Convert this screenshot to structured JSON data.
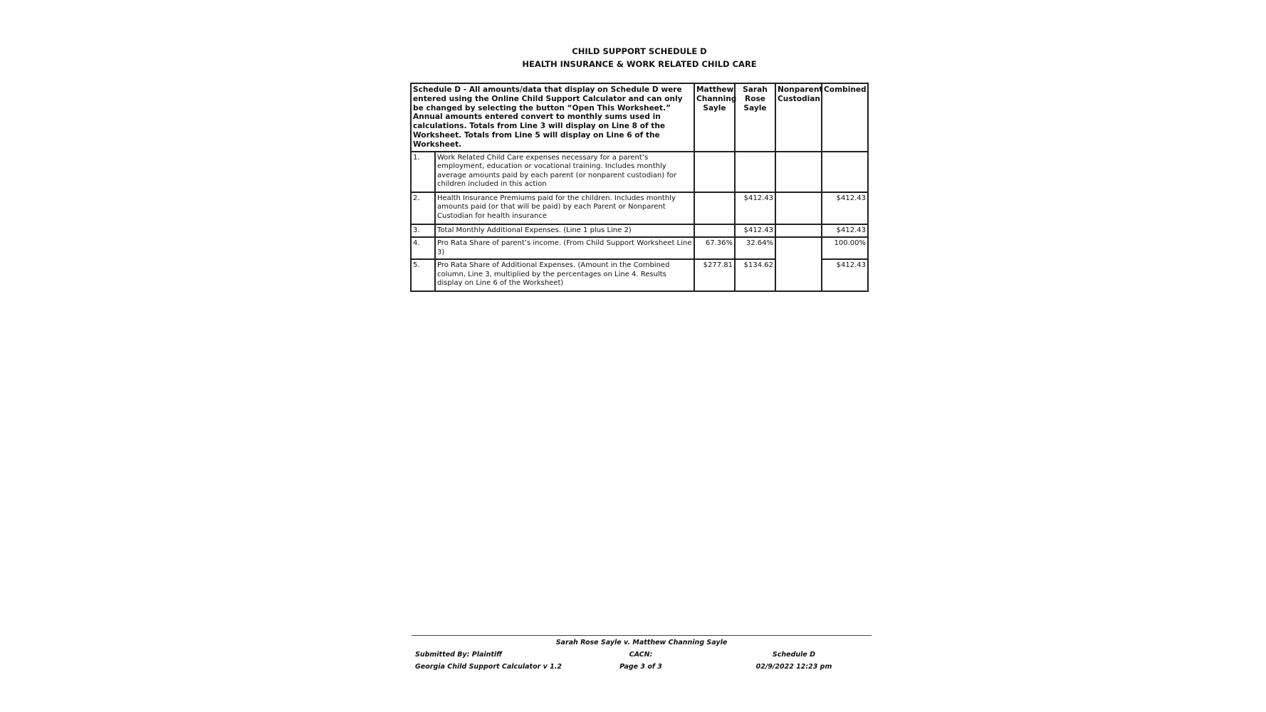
{
  "title": {
    "line1": "CHILD SUPPORT SCHEDULE D",
    "line2": "HEALTH INSURANCE & WORK RELATED CHILD CARE"
  },
  "header": {
    "description": "Schedule D - All amounts/data that display on Schedule D were entered using the Online Child Support Calculator and can only be changed by selecting the button “Open This Worksheet.” Annual amounts entered convert to monthly sums used in calculations. Totals from Line 3 will display on Line 8 of the Worksheet. Totals from Line 5 will display on Line 6 of the Worksheet.",
    "columns": [
      "Matthew Channing Sayle",
      "Sarah Rose Sayle",
      "Nonparent Custodian",
      "Combined"
    ]
  },
  "rows": [
    {
      "num": "1.",
      "label": "Work Related Child Care expenses necessary for a parent’s employment, education or vocational training. Includes monthly average amounts paid by each parent (or nonparent custodian) for children included in this action",
      "matthew": "",
      "sarah": "",
      "nonparent": "",
      "combined": ""
    },
    {
      "num": "2.",
      "label": "Health Insurance Premiums paid for the children. Includes monthly amounts paid (or that will be paid) by each Parent or Nonparent Custodian for health insurance",
      "matthew": "",
      "sarah": "$412.43",
      "nonparent": "",
      "combined": "$412.43"
    },
    {
      "num": "3.",
      "label": "Total Monthly Additional Expenses. (Line 1 plus Line 2)",
      "matthew": "",
      "sarah": "$412.43",
      "nonparent": "",
      "combined": "$412.43"
    },
    {
      "num": "4.",
      "label": "Pro Rata Share of parent’s income. (From Child Support Worksheet Line 3)",
      "matthew": "67.36%",
      "sarah": "32.64%",
      "nonparent": "",
      "combined": "100.00%"
    },
    {
      "num": "5.",
      "label": "Pro Rata Share of Additional Expenses. (Amount in the Combined column, Line 3, multiplied by the percentages on Line 4. Results display on Line 6 of the Worksheet)",
      "matthew": "$277.81",
      "sarah": "$134.62",
      "combined": "$412.43"
    }
  ],
  "footer": {
    "case": "Sarah Rose Sayle v. Matthew Channing Sayle",
    "submitted": "Submitted By: Plaintiff",
    "cacn": "CACN:",
    "schedule": "Schedule D",
    "calculator": "Georgia Child Support Calculator v 1.2",
    "page": "Page 3 of 3",
    "datetime": "02/9/2022 12:23 pm"
  }
}
